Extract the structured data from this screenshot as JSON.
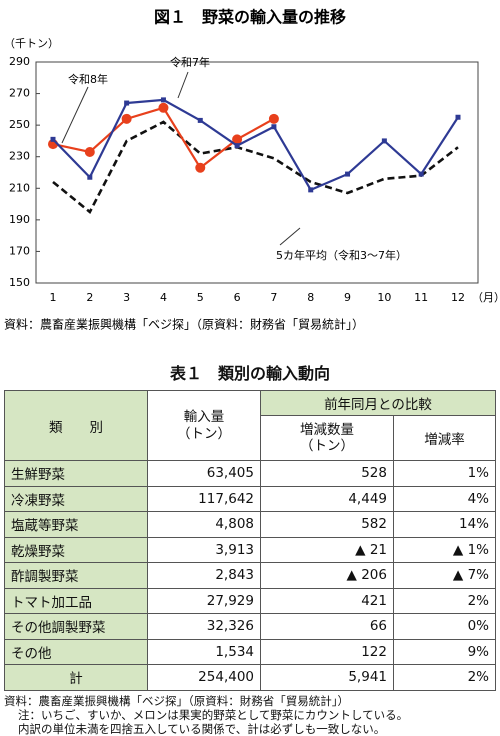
{
  "chart_data": {
    "type": "line",
    "title": "図１　野菜の輸入量の推移",
    "y_label": "（千トン）",
    "x_label": "（月）",
    "categories": [
      "1",
      "2",
      "3",
      "4",
      "5",
      "6",
      "7",
      "8",
      "9",
      "10",
      "11",
      "12"
    ],
    "series": [
      {
        "name": "令和8年",
        "color": "#e8401c",
        "marker": "circle",
        "dashed": false,
        "values": [
          238,
          233,
          254,
          261,
          223,
          241,
          254,
          null,
          null,
          null,
          null,
          null
        ]
      },
      {
        "name": "令和7年",
        "color": "#2e3a94",
        "marker": "square",
        "dashed": false,
        "values": [
          241,
          217,
          264,
          266,
          253,
          237,
          249,
          209,
          219,
          240,
          219,
          255
        ]
      },
      {
        "name": "5カ年平均（令和3～7年）",
        "color": "#111111",
        "marker": "none",
        "dashed": true,
        "values": [
          214,
          195,
          240,
          252,
          232,
          236,
          229,
          214,
          207,
          216,
          218,
          236
        ]
      }
    ],
    "ylim": [
      150,
      290
    ],
    "yticks": [
      150,
      170,
      190,
      210,
      230,
      250,
      270,
      290
    ],
    "source": "資料：農畜産業振興機構「ベジ探」（原資料：財務省「貿易統計」）"
  },
  "table": {
    "title": "表１　類別の輸入動向",
    "header": [
      "類　　別",
      "輸入量\n（トン）",
      "前年同月との比較",
      "増減数量\n（トン）",
      "増減率"
    ],
    "rows": [
      [
        "生鮮野菜",
        "63,405",
        "528",
        "1%"
      ],
      [
        "冷凍野菜",
        "117,642",
        "4,449",
        "4%"
      ],
      [
        "塩蔵等野菜",
        "4,808",
        "582",
        "14%"
      ],
      [
        "乾燥野菜",
        "3,913",
        "▲ 21",
        "▲ 1%"
      ],
      [
        "酢調製野菜",
        "2,843",
        "▲ 206",
        "▲ 7%"
      ],
      [
        "トマト加工品",
        "27,929",
        "421",
        "2%"
      ],
      [
        "その他調製野菜",
        "32,326",
        "66",
        "0%"
      ],
      [
        "その他",
        "1,534",
        "122",
        "9%"
      ],
      [
        "計",
        "254,400",
        "5,941",
        "2%"
      ]
    ],
    "notes": [
      "資料：農畜産業振興機構「ベジ探」（原資料：財務省「貿易統計」）",
      "注：いちご、すいか、メロンは果実的野菜として野菜にカウントしている。",
      "内訳の単位未満を四捨五入している関係で、計は必ずしも一致しない。"
    ]
  }
}
